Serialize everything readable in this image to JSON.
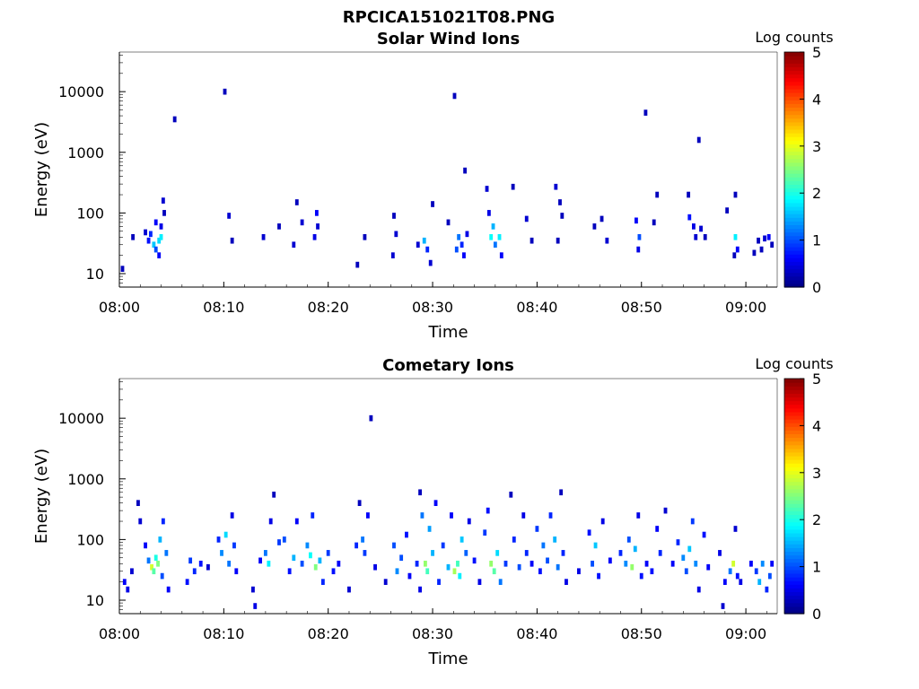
{
  "figure_title": "RPCICA151021T08.PNG",
  "chart_data": [
    {
      "type": "heatmap",
      "title": "Solar Wind Ions",
      "xlabel": "Time",
      "ylabel": "Energy (eV)",
      "yscale": "log",
      "xlim": [
        "08:00",
        "09:03"
      ],
      "ylim": [
        6,
        45000
      ],
      "xticks": [
        "08:00",
        "08:10",
        "08:20",
        "08:30",
        "08:40",
        "08:50",
        "09:00"
      ],
      "yticks": [
        "10",
        "100",
        "1000",
        "10000"
      ],
      "colorbar": {
        "label": "Log counts",
        "range": [
          0,
          5
        ],
        "ticks": [
          "0",
          "1",
          "2",
          "3",
          "4",
          "5"
        ],
        "colormap": "jet"
      },
      "cells": [
        [
          "08:00.3",
          12,
          0.3
        ],
        [
          "08:01.3",
          40,
          0.3
        ],
        [
          "08:02.5",
          48,
          0.4
        ],
        [
          "08:02.8",
          35,
          0.7
        ],
        [
          "08:03.0",
          45,
          0.8
        ],
        [
          "08:03.3",
          30,
          1.6
        ],
        [
          "08:03.5",
          25,
          1.0
        ],
        [
          "08:03.5",
          70,
          0.6
        ],
        [
          "08:03.8",
          35,
          1.7
        ],
        [
          "08:03.8",
          20,
          0.6
        ],
        [
          "08:04.0",
          40,
          1.8
        ],
        [
          "08:04.0",
          60,
          0.5
        ],
        [
          "08:04.2",
          160,
          0.4
        ],
        [
          "08:04.3",
          100,
          0.3
        ],
        [
          "08:05.3",
          3500,
          0.3
        ],
        [
          "08:10.1",
          10000,
          0.3
        ],
        [
          "08:10.5",
          90,
          0.4
        ],
        [
          "08:10.8",
          35,
          0.3
        ],
        [
          "08:13.8",
          40,
          0.4
        ],
        [
          "08:15.3",
          60,
          0.3
        ],
        [
          "08:16.7",
          30,
          0.4
        ],
        [
          "08:17.0",
          150,
          0.3
        ],
        [
          "08:17.5",
          70,
          0.4
        ],
        [
          "08:18.7",
          40,
          0.5
        ],
        [
          "08:18.9",
          100,
          0.6
        ],
        [
          "08:19.0",
          60,
          0.4
        ],
        [
          "08:22.8",
          14,
          0.3
        ],
        [
          "08:23.5",
          40,
          0.3
        ],
        [
          "08:26.2",
          20,
          0.4
        ],
        [
          "08:26.3",
          90,
          0.3
        ],
        [
          "08:26.5",
          45,
          0.4
        ],
        [
          "08:28.6",
          30,
          0.4
        ],
        [
          "08:29.2",
          35,
          1.5
        ],
        [
          "08:29.5",
          25,
          0.8
        ],
        [
          "08:29.8",
          15,
          0.4
        ],
        [
          "08:30.0",
          140,
          0.3
        ],
        [
          "08:31.5",
          70,
          0.3
        ],
        [
          "08:32.1",
          8500,
          0.3
        ],
        [
          "08:32.3",
          25,
          1.0
        ],
        [
          "08:32.5",
          40,
          1.2
        ],
        [
          "08:32.8",
          30,
          0.8
        ],
        [
          "08:33.0",
          20,
          0.6
        ],
        [
          "08:33.3",
          45,
          0.5
        ],
        [
          "08:33.1",
          500,
          0.3
        ],
        [
          "08:35.2",
          250,
          0.4
        ],
        [
          "08:35.4",
          100,
          0.5
        ],
        [
          "08:35.6",
          40,
          1.9
        ],
        [
          "08:35.8",
          60,
          1.5
        ],
        [
          "08:36.0",
          30,
          1.2
        ],
        [
          "08:36.4",
          40,
          1.8
        ],
        [
          "08:36.6",
          20,
          0.6
        ],
        [
          "08:37.7",
          270,
          0.3
        ],
        [
          "08:39.0",
          80,
          0.4
        ],
        [
          "08:39.5",
          35,
          0.3
        ],
        [
          "08:41.8",
          270,
          0.4
        ],
        [
          "08:42.2",
          150,
          0.3
        ],
        [
          "08:42.4",
          90,
          0.3
        ],
        [
          "08:42.0",
          35,
          0.3
        ],
        [
          "08:45.5",
          60,
          0.3
        ],
        [
          "08:46.2",
          80,
          0.3
        ],
        [
          "08:46.7",
          35,
          0.4
        ],
        [
          "08:49.5",
          75,
          0.6
        ],
        [
          "08:49.8",
          40,
          1.0
        ],
        [
          "08:49.7",
          25,
          0.5
        ],
        [
          "08:50.4",
          4500,
          0.3
        ],
        [
          "08:51.5",
          200,
          0.3
        ],
        [
          "08:51.2",
          70,
          0.3
        ],
        [
          "08:54.5",
          200,
          0.3
        ],
        [
          "08:54.6",
          85,
          0.7
        ],
        [
          "08:55.0",
          60,
          0.5
        ],
        [
          "08:55.2",
          40,
          0.4
        ],
        [
          "08:55.5",
          1600,
          0.3
        ],
        [
          "08:55.7",
          55,
          0.4
        ],
        [
          "08:56.1",
          40,
          0.3
        ],
        [
          "08:58.2",
          110,
          0.3
        ],
        [
          "08:59.0",
          200,
          0.3
        ],
        [
          "08:59.0",
          40,
          1.8
        ],
        [
          "08:59.2",
          25,
          0.6
        ],
        [
          "08:58.9",
          20,
          0.3
        ],
        [
          "09:00.8",
          22,
          0.3
        ],
        [
          "09:01.2",
          35,
          0.3
        ],
        [
          "09:01.8",
          38,
          0.4
        ],
        [
          "09:02.2",
          40,
          0.6
        ],
        [
          "09:02.5",
          30,
          0.3
        ],
        [
          "09:01.5",
          25,
          0.3
        ]
      ]
    },
    {
      "type": "heatmap",
      "title": "Cometary Ions",
      "xlabel": "Time",
      "ylabel": "Energy (eV)",
      "yscale": "log",
      "xlim": [
        "08:00",
        "09:03"
      ],
      "ylim": [
        6,
        45000
      ],
      "xticks": [
        "08:00",
        "08:10",
        "08:20",
        "08:30",
        "08:40",
        "08:50",
        "09:00"
      ],
      "yticks": [
        "10",
        "100",
        "1000",
        "10000"
      ],
      "colorbar": {
        "label": "Log counts",
        "range": [
          0,
          5
        ],
        "ticks": [
          "0",
          "1",
          "2",
          "3",
          "4",
          "5"
        ],
        "colormap": "jet"
      },
      "cells": [
        [
          "08:00.5",
          20,
          0.6
        ],
        [
          "08:00.8",
          15,
          0.5
        ],
        [
          "08:01.2",
          30,
          0.4
        ],
        [
          "08:01.8",
          400,
          0.3
        ],
        [
          "08:02.0",
          200,
          0.4
        ],
        [
          "08:02.5",
          80,
          0.6
        ],
        [
          "08:02.8",
          45,
          1.2
        ],
        [
          "08:03.1",
          35,
          2.9
        ],
        [
          "08:03.3",
          30,
          2.3
        ],
        [
          "08:03.5",
          50,
          2.0
        ],
        [
          "08:03.7",
          40,
          2.5
        ],
        [
          "08:03.9",
          100,
          1.5
        ],
        [
          "08:04.1",
          25,
          1.0
        ],
        [
          "08:04.2",
          200,
          0.8
        ],
        [
          "08:04.5",
          60,
          1.2
        ],
        [
          "08:04.7",
          15,
          0.6
        ],
        [
          "08:06.5",
          20,
          0.7
        ],
        [
          "08:06.8",
          45,
          0.9
        ],
        [
          "08:07.2",
          30,
          0.8
        ],
        [
          "08:07.8",
          40,
          0.7
        ],
        [
          "08:08.5",
          35,
          0.4
        ],
        [
          "08:09.5",
          100,
          0.8
        ],
        [
          "08:09.8",
          60,
          1.3
        ],
        [
          "08:10.2",
          120,
          1.7
        ],
        [
          "08:10.5",
          40,
          1.2
        ],
        [
          "08:10.8",
          250,
          0.5
        ],
        [
          "08:11.0",
          80,
          0.9
        ],
        [
          "08:11.2",
          30,
          0.6
        ],
        [
          "08:12.8",
          15,
          0.4
        ],
        [
          "08:13.5",
          45,
          0.6
        ],
        [
          "08:14.0",
          60,
          1.2
        ],
        [
          "08:14.3",
          40,
          1.8
        ],
        [
          "08:14.5",
          200,
          0.5
        ],
        [
          "08:14.8",
          550,
          0.3
        ],
        [
          "08:15.3",
          90,
          0.9
        ],
        [
          "08:15.8",
          100,
          1.0
        ],
        [
          "08:16.3",
          30,
          0.7
        ],
        [
          "08:16.7",
          50,
          1.5
        ],
        [
          "08:17.0",
          200,
          0.6
        ],
        [
          "08:17.5",
          40,
          1.0
        ],
        [
          "08:18.0",
          80,
          1.3
        ],
        [
          "08:18.3",
          55,
          1.9
        ],
        [
          "08:18.5",
          250,
          0.8
        ],
        [
          "08:18.8",
          35,
          2.5
        ],
        [
          "08:19.2",
          45,
          1.5
        ],
        [
          "08:19.5",
          20,
          0.8
        ],
        [
          "08:20.0",
          60,
          0.9
        ],
        [
          "08:20.5",
          30,
          0.7
        ],
        [
          "08:21.0",
          40,
          0.6
        ],
        [
          "08:22.0",
          15,
          0.4
        ],
        [
          "08:22.7",
          80,
          0.8
        ],
        [
          "08:23.0",
          400,
          0.3
        ],
        [
          "08:23.3",
          100,
          1.2
        ],
        [
          "08:23.5",
          60,
          0.9
        ],
        [
          "08:23.8",
          250,
          0.6
        ],
        [
          "08:24.1",
          10000,
          0.3
        ],
        [
          "08:24.5",
          35,
          0.5
        ],
        [
          "08:25.5",
          20,
          0.4
        ],
        [
          "08:26.3",
          80,
          1.0
        ],
        [
          "08:26.6",
          30,
          1.3
        ],
        [
          "08:27.0",
          50,
          1.0
        ],
        [
          "08:27.5",
          120,
          0.7
        ],
        [
          "08:27.8",
          25,
          0.6
        ],
        [
          "08:28.5",
          40,
          0.8
        ],
        [
          "08:28.8",
          600,
          0.3
        ],
        [
          "08:29.0",
          250,
          1.2
        ],
        [
          "08:29.3",
          40,
          2.6
        ],
        [
          "08:29.5",
          30,
          2.2
        ],
        [
          "08:29.7",
          150,
          1.4
        ],
        [
          "08:30.0",
          60,
          1.5
        ],
        [
          "08:30.3",
          400,
          0.6
        ],
        [
          "08:30.6",
          20,
          0.8
        ],
        [
          "08:31.0",
          80,
          0.9
        ],
        [
          "08:31.5",
          35,
          1.5
        ],
        [
          "08:31.8",
          250,
          0.6
        ],
        [
          "08:32.1",
          30,
          2.7
        ],
        [
          "08:32.4",
          40,
          2.2
        ],
        [
          "08:32.6",
          25,
          1.8
        ],
        [
          "08:32.8",
          100,
          1.6
        ],
        [
          "08:33.2",
          60,
          1.1
        ],
        [
          "08:33.5",
          200,
          0.5
        ],
        [
          "08:34.0",
          45,
          0.7
        ],
        [
          "08:34.5",
          20,
          0.5
        ],
        [
          "08:35.0",
          130,
          0.9
        ],
        [
          "08:35.3",
          300,
          0.7
        ],
        [
          "08:35.6",
          40,
          2.6
        ],
        [
          "08:35.9",
          30,
          2.3
        ],
        [
          "08:36.2",
          60,
          1.7
        ],
        [
          "08:36.5",
          20,
          1.2
        ],
        [
          "08:37.0",
          40,
          0.9
        ],
        [
          "08:37.5",
          550,
          0.3
        ],
        [
          "08:37.8",
          100,
          0.8
        ],
        [
          "08:38.3",
          35,
          1.0
        ],
        [
          "08:38.7",
          250,
          0.5
        ],
        [
          "08:39.0",
          60,
          0.8
        ],
        [
          "08:39.5",
          40,
          0.6
        ],
        [
          "08:40.0",
          150,
          0.9
        ],
        [
          "08:40.3",
          30,
          0.7
        ],
        [
          "08:40.6",
          80,
          1.2
        ],
        [
          "08:41.0",
          45,
          1.0
        ],
        [
          "08:41.3",
          250,
          0.8
        ],
        [
          "08:41.7",
          100,
          1.5
        ],
        [
          "08:42.0",
          35,
          1.2
        ],
        [
          "08:42.3",
          600,
          0.3
        ],
        [
          "08:42.5",
          60,
          0.8
        ],
        [
          "08:42.8",
          20,
          0.5
        ],
        [
          "08:44.0",
          30,
          0.5
        ],
        [
          "08:45.0",
          130,
          0.7
        ],
        [
          "08:45.3",
          40,
          1.0
        ],
        [
          "08:45.6",
          80,
          1.6
        ],
        [
          "08:45.9",
          25,
          0.7
        ],
        [
          "08:46.3",
          200,
          0.5
        ],
        [
          "08:47.0",
          45,
          0.6
        ],
        [
          "08:48.0",
          60,
          0.8
        ],
        [
          "08:48.5",
          40,
          1.3
        ],
        [
          "08:48.8",
          100,
          1.0
        ],
        [
          "08:49.1",
          35,
          2.6
        ],
        [
          "08:49.4",
          70,
          1.5
        ],
        [
          "08:49.7",
          250,
          0.5
        ],
        [
          "08:50.0",
          25,
          0.7
        ],
        [
          "08:50.5",
          40,
          0.6
        ],
        [
          "08:51.0",
          30,
          0.7
        ],
        [
          "08:51.5",
          150,
          0.6
        ],
        [
          "08:51.8",
          60,
          0.8
        ],
        [
          "08:52.3",
          300,
          0.4
        ],
        [
          "08:53.0",
          40,
          0.6
        ],
        [
          "08:53.5",
          90,
          0.8
        ],
        [
          "08:54.0",
          50,
          1.3
        ],
        [
          "08:54.3",
          30,
          1.0
        ],
        [
          "08:54.6",
          70,
          1.6
        ],
        [
          "08:54.9",
          200,
          0.9
        ],
        [
          "08:55.2",
          40,
          1.3
        ],
        [
          "08:55.5",
          15,
          0.5
        ],
        [
          "08:56.0",
          120,
          0.7
        ],
        [
          "08:56.4",
          35,
          0.6
        ],
        [
          "08:57.5",
          60,
          0.5
        ],
        [
          "08:58.0",
          20,
          0.6
        ],
        [
          "08:58.5",
          30,
          1.2
        ],
        [
          "08:58.8",
          40,
          2.9
        ],
        [
          "08:59.0",
          150,
          0.4
        ],
        [
          "08:59.2",
          25,
          0.7
        ],
        [
          "08:59.5",
          20,
          0.5
        ],
        [
          "09:00.5",
          40,
          0.6
        ],
        [
          "09:01.0",
          30,
          0.9
        ],
        [
          "09:01.3",
          20,
          1.5
        ],
        [
          "09:01.6",
          40,
          1.3
        ],
        [
          "09:02.0",
          15,
          0.8
        ],
        [
          "09:02.3",
          25,
          1.0
        ],
        [
          "09:02.5",
          40,
          0.6
        ],
        [
          "08:28.8",
          15,
          0.5
        ],
        [
          "08:13.0",
          8,
          0.5
        ],
        [
          "08:57.8",
          8,
          0.4
        ]
      ]
    }
  ]
}
